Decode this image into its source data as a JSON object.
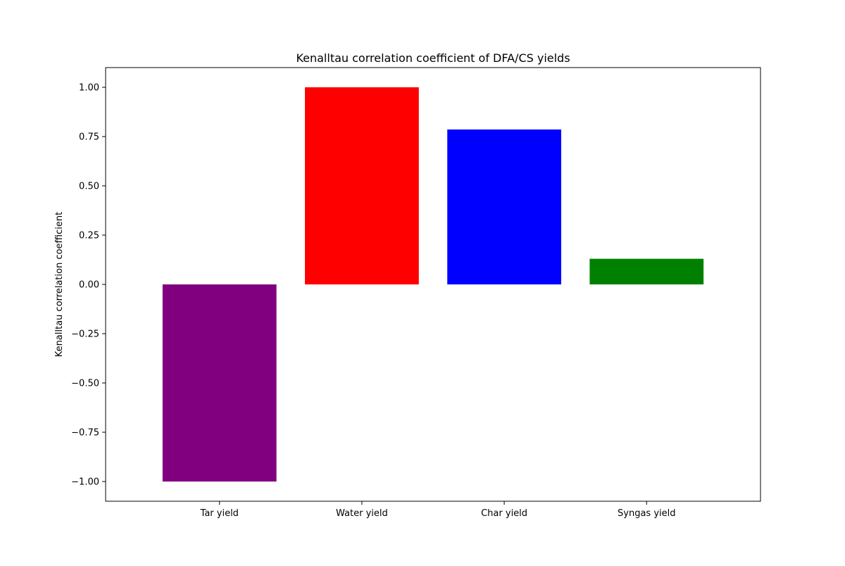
{
  "chart_data": {
    "type": "bar",
    "title": "Kenalltau correlation coefficient of DFA/CS yields",
    "xlabel": "",
    "ylabel": "Kenalltau correlation coefficient",
    "categories": [
      "Tar yield",
      "Water yield",
      "Char yield",
      "Syngas yield"
    ],
    "values": [
      -1.0,
      1.0,
      0.786,
      0.13
    ],
    "colors": [
      "#800080",
      "#ff0000",
      "#0000ff",
      "#008000"
    ],
    "ylim": [
      -1.1,
      1.1
    ],
    "yticks": [
      -1.0,
      -0.75,
      -0.5,
      -0.25,
      0.0,
      0.25,
      0.5,
      0.75,
      1.0
    ],
    "ytick_labels": [
      "−1.00",
      "−0.75",
      "−0.50",
      "−0.25",
      "0.00",
      "0.25",
      "0.50",
      "0.75",
      "1.00"
    ],
    "grid": false,
    "legend": "none"
  }
}
